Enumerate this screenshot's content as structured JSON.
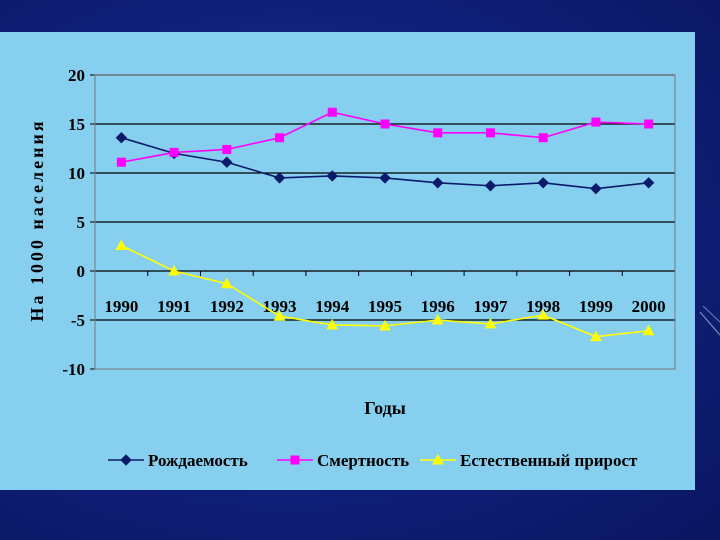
{
  "chart_data": {
    "type": "line",
    "title": "",
    "xlabel": "Годы",
    "ylabel": "На 1000 населения",
    "ylim": [
      -10,
      20
    ],
    "yticks": [
      -10,
      -5,
      0,
      5,
      10,
      15,
      20
    ],
    "categories": [
      "1990",
      "1991",
      "1992",
      "1993",
      "1994",
      "1995",
      "1996",
      "1997",
      "1998",
      "1999",
      "2000"
    ],
    "grid": "horizontal",
    "legend_position": "bottom",
    "series": [
      {
        "name": "Рождаемость",
        "color": "#0c1a6b",
        "marker": "diamond",
        "values": [
          13.6,
          12.0,
          11.1,
          9.5,
          9.7,
          9.5,
          9.0,
          8.7,
          9.0,
          8.4,
          9.0
        ]
      },
      {
        "name": "Смертность",
        "color": "#ff00ff",
        "marker": "square",
        "values": [
          11.1,
          12.1,
          12.4,
          13.6,
          16.2,
          15.0,
          14.1,
          14.1,
          13.6,
          15.2,
          15.0
        ]
      },
      {
        "name": "Естественный прирост",
        "color": "#ffff00",
        "marker": "triangle",
        "values": [
          2.6,
          0.0,
          -1.3,
          -4.6,
          -5.5,
          -5.6,
          -5.0,
          -5.4,
          -4.5,
          -6.7,
          -6.1
        ]
      }
    ]
  },
  "colors": {
    "background": "#10207a",
    "panel": "#87cfee",
    "plot_area": "#87cfee"
  }
}
